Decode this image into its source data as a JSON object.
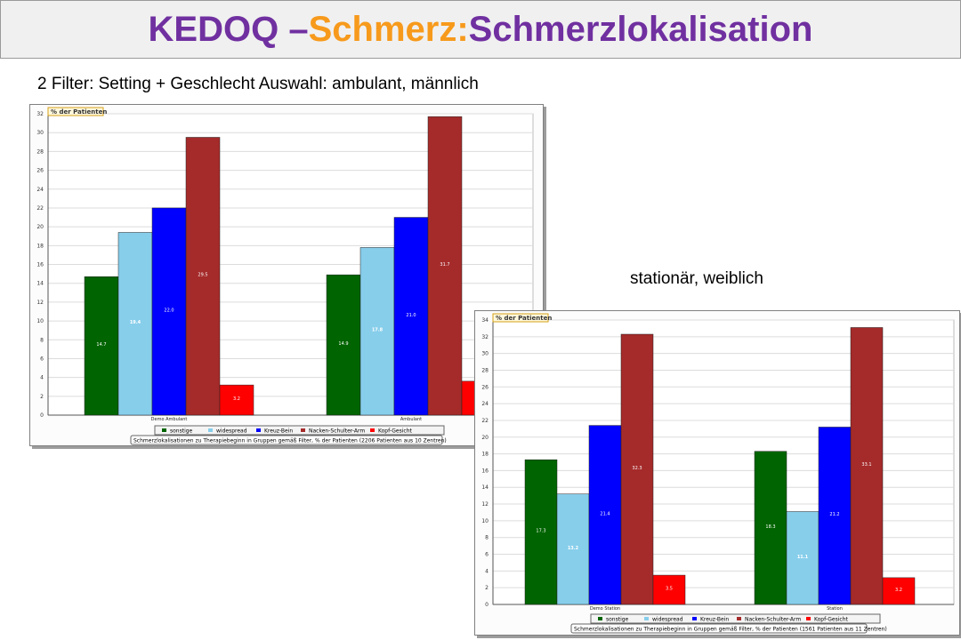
{
  "title": {
    "part1": "KEDOQ – ",
    "part2": "Schmerz:",
    "part3": " Schmerzlokalisation",
    "color_purple": "#7030a0",
    "color_orange": "#f79a1c"
  },
  "filter_text": "2 Filter: Setting + Geschlecht Auswahl: ambulant, männlich",
  "second_label": "stationär, weiblich",
  "legend": [
    "sonstige",
    "widespread",
    "Kreuz-Bein",
    "Nacken-Schulter-Arm",
    "Kopf-Gesicht"
  ],
  "series_colors": [
    "#006400",
    "#87ceeb",
    "#0000ff",
    "#a52a2a",
    "#ff0000"
  ],
  "chart_data": [
    {
      "type": "bar",
      "unit_label": "% der Patienten",
      "caption": "Schmerzlokalisationen zu Therapiebeginn in Gruppen gemäß Filter, % der Patienten (2206 Patienten aus 10 Zentren)",
      "categories": [
        "Demo Ambulant",
        "Ambulant"
      ],
      "series": [
        {
          "name": "sonstige",
          "values": [
            14.7,
            14.9
          ]
        },
        {
          "name": "widespread",
          "values": [
            19.4,
            17.8
          ]
        },
        {
          "name": "Kreuz-Bein",
          "values": [
            22.0,
            21.0
          ]
        },
        {
          "name": "Nacken-Schulter-Arm",
          "values": [
            29.5,
            31.7
          ]
        },
        {
          "name": "Kopf-Gesicht",
          "values": [
            3.2,
            3.6
          ]
        }
      ],
      "value_labels": [
        [
          "14.7",
          "19.4",
          "22.0",
          "29.5",
          "3.2"
        ],
        [
          "14.9",
          "17.8",
          "21.0",
          "31.7",
          ""
        ]
      ],
      "ylim": [
        0,
        32
      ],
      "yticks": [
        0,
        2,
        4,
        6,
        8,
        10,
        12,
        14,
        16,
        18,
        20,
        22,
        24,
        26,
        28,
        30,
        32
      ],
      "grid": true,
      "legend_position": "bottom"
    },
    {
      "type": "bar",
      "unit_label": "% der Patienten",
      "caption": "Schmerzlokalisationen zu Therapiebeginn in Gruppen gemäß Filter, % der Patienten (1561 Patienten aus 11 Zentren)",
      "categories": [
        "Demo Station",
        "Station"
      ],
      "series": [
        {
          "name": "sonstige",
          "values": [
            17.3,
            18.3
          ]
        },
        {
          "name": "widespread",
          "values": [
            13.2,
            11.1
          ]
        },
        {
          "name": "Kreuz-Bein",
          "values": [
            21.4,
            21.2
          ]
        },
        {
          "name": "Nacken-Schulter-Arm",
          "values": [
            32.3,
            33.1
          ]
        },
        {
          "name": "Kopf-Gesicht",
          "values": [
            3.5,
            3.2
          ]
        }
      ],
      "value_labels": [
        [
          "17.3",
          "13.2",
          "21.4",
          "32.3",
          "3.5"
        ],
        [
          "18.3",
          "11.1",
          "21.2",
          "33.1",
          "3.2"
        ]
      ],
      "ylim": [
        0,
        34
      ],
      "yticks": [
        0,
        2,
        4,
        6,
        8,
        10,
        12,
        14,
        16,
        18,
        20,
        22,
        24,
        26,
        28,
        30,
        32,
        34
      ],
      "grid": true,
      "legend_position": "bottom"
    }
  ]
}
